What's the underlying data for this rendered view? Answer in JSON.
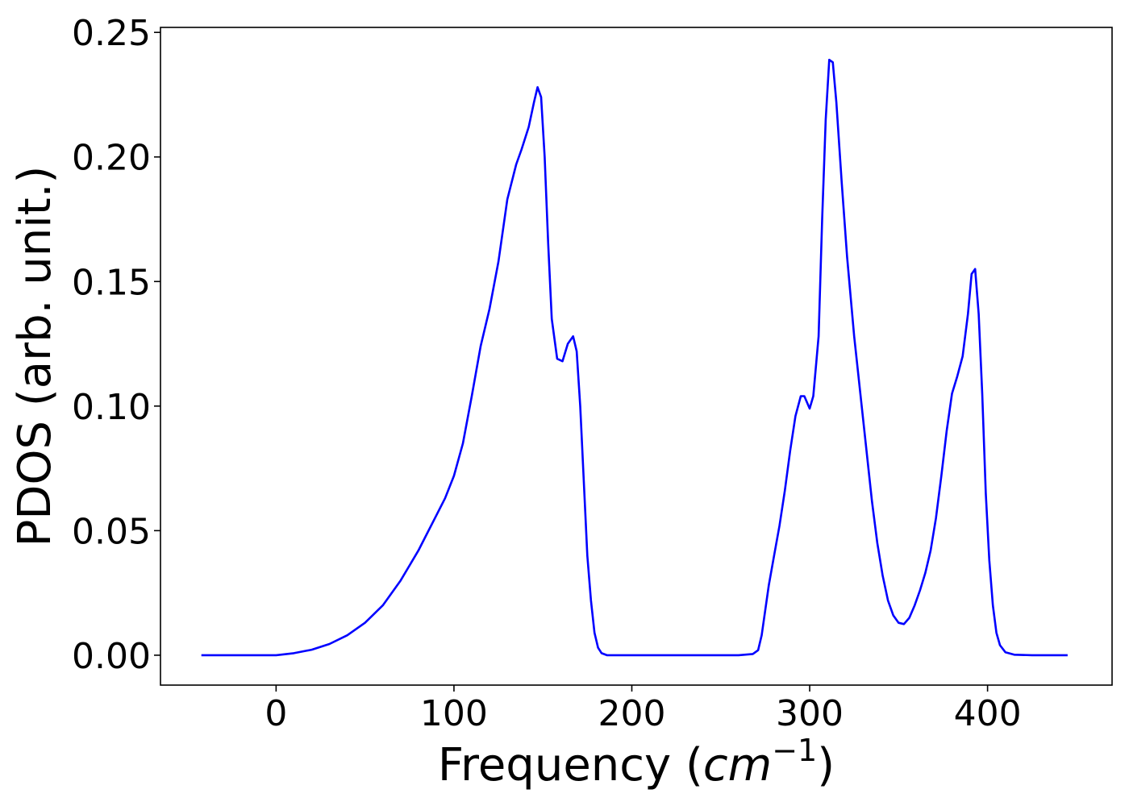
{
  "chart_data": {
    "type": "line",
    "title": "",
    "xlabel": "Frequency",
    "xlabel_unit": {
      "open": "(",
      "base": "cm",
      "exponent": "−1",
      "close": ")"
    },
    "ylabel": "PDOS (arb. unit.)",
    "xlim": [
      -65,
      470
    ],
    "ylim": [
      -0.012,
      0.252
    ],
    "xticks": [
      0,
      100,
      200,
      300,
      400
    ],
    "xtick_labels": [
      "0",
      "100",
      "200",
      "300",
      "400"
    ],
    "yticks": [
      0.0,
      0.05,
      0.1,
      0.15,
      0.2,
      0.25
    ],
    "ytick_labels": [
      "0.00",
      "0.05",
      "0.10",
      "0.15",
      "0.20",
      "0.25"
    ],
    "grid": false,
    "legend": "none",
    "series": [
      {
        "color": "#0000ff",
        "x": [
          -42,
          0,
          10,
          20,
          30,
          40,
          50,
          60,
          70,
          80,
          85,
          90,
          95,
          100,
          105,
          110,
          115,
          120,
          125,
          130,
          135,
          138,
          142,
          145,
          147,
          149,
          151,
          153,
          155,
          158,
          161,
          164,
          167,
          169,
          171,
          173,
          175,
          177,
          179,
          181,
          183,
          186,
          190,
          200,
          220,
          240,
          260,
          268,
          271,
          273,
          275,
          277,
          280,
          283,
          286,
          289,
          292,
          295,
          297,
          300,
          302,
          305,
          307,
          309,
          311,
          313,
          315,
          318,
          321,
          325,
          330,
          335,
          338,
          341,
          344,
          347,
          350,
          353,
          356,
          359,
          362,
          365,
          368,
          371,
          374,
          377,
          380,
          383,
          386,
          389,
          391,
          393,
          395,
          397,
          399,
          401,
          403,
          405,
          407,
          410,
          415,
          425,
          445
        ],
        "y": [
          0.0,
          0.0,
          0.0008,
          0.0022,
          0.0045,
          0.008,
          0.013,
          0.02,
          0.03,
          0.042,
          0.049,
          0.056,
          0.063,
          0.072,
          0.085,
          0.104,
          0.124,
          0.139,
          0.158,
          0.183,
          0.197,
          0.203,
          0.212,
          0.222,
          0.228,
          0.224,
          0.2,
          0.165,
          0.135,
          0.119,
          0.118,
          0.125,
          0.128,
          0.122,
          0.1,
          0.07,
          0.04,
          0.022,
          0.009,
          0.003,
          0.0008,
          0.0,
          0.0,
          0.0,
          0.0,
          0.0,
          0.0,
          0.0005,
          0.002,
          0.008,
          0.018,
          0.028,
          0.04,
          0.052,
          0.066,
          0.082,
          0.096,
          0.104,
          0.104,
          0.099,
          0.104,
          0.128,
          0.175,
          0.215,
          0.239,
          0.238,
          0.222,
          0.19,
          0.16,
          0.128,
          0.095,
          0.062,
          0.045,
          0.032,
          0.022,
          0.016,
          0.013,
          0.0125,
          0.015,
          0.02,
          0.026,
          0.033,
          0.042,
          0.055,
          0.072,
          0.09,
          0.105,
          0.112,
          0.12,
          0.137,
          0.153,
          0.155,
          0.137,
          0.105,
          0.065,
          0.038,
          0.02,
          0.009,
          0.004,
          0.0012,
          0.0002,
          0.0,
          0.0
        ]
      }
    ]
  }
}
